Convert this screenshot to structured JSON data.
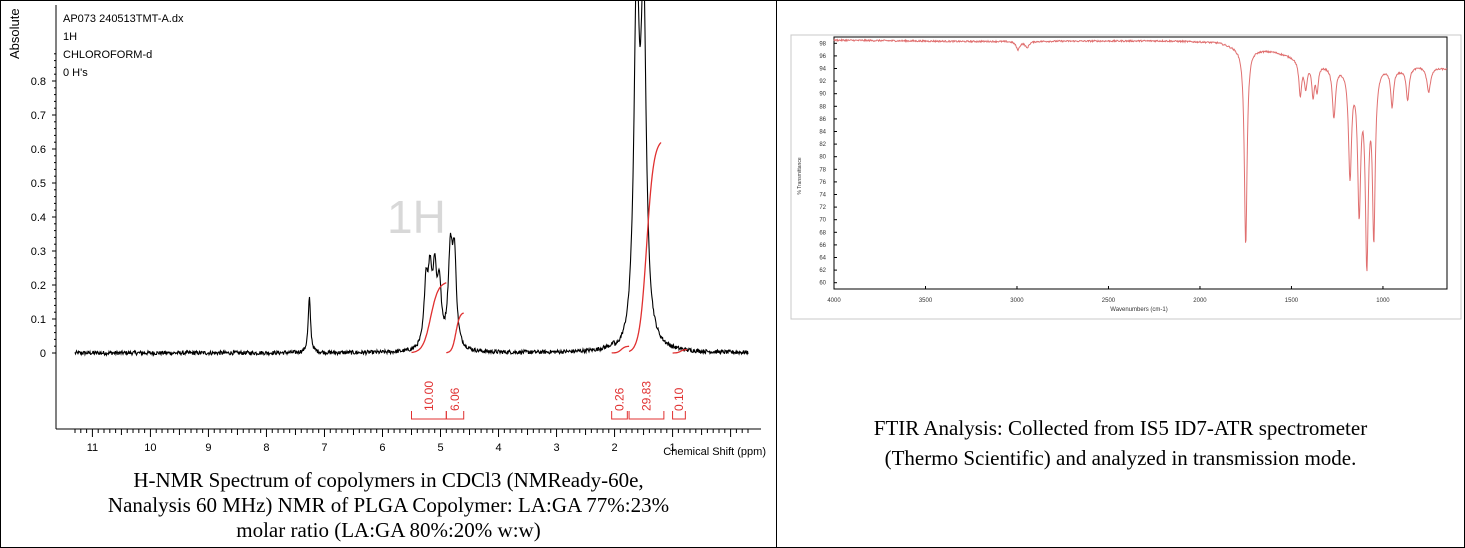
{
  "nmr": {
    "chart_data": {
      "type": "line",
      "header_lines": [
        "AP073 240513TMT-A.dx",
        "1H",
        "CHLOROFORM-d",
        "0 H's"
      ],
      "ylabel": "Absolute",
      "xlabel": "Chemical Shift (ppm)",
      "watermark": "1H",
      "xlim": [
        11.3,
        -0.3
      ],
      "ylim": [
        -0.04,
        0.98
      ],
      "y_ticks": [
        "0",
        "0.1",
        "0.2",
        "0.3",
        "0.4",
        "0.5",
        "0.6",
        "0.7",
        "0.8"
      ],
      "x_ticks": [
        "11",
        "10",
        "9",
        "8",
        "7",
        "6",
        "5",
        "4",
        "3",
        "2",
        "1"
      ],
      "peaks": [
        {
          "x": 7.26,
          "y": 0.16,
          "w": 0.025
        },
        {
          "x": 5.25,
          "y": 0.18,
          "w": 0.04
        },
        {
          "x": 5.18,
          "y": 0.19,
          "w": 0.04
        },
        {
          "x": 5.1,
          "y": 0.2,
          "w": 0.04
        },
        {
          "x": 5.02,
          "y": 0.17,
          "w": 0.04
        },
        {
          "x": 4.83,
          "y": 0.27,
          "w": 0.045
        },
        {
          "x": 4.76,
          "y": 0.25,
          "w": 0.04
        },
        {
          "x": 1.62,
          "y": 1.0,
          "w": 0.055
        },
        {
          "x": 1.5,
          "y": 0.98,
          "w": 0.055
        }
      ],
      "integral_curves": [
        {
          "from": 5.5,
          "to": 4.9,
          "end_y": 0.21
        },
        {
          "from": 4.9,
          "to": 4.6,
          "end_y": 0.12
        },
        {
          "from": 2.05,
          "to": 1.75,
          "end_y": 0.02
        },
        {
          "from": 1.75,
          "to": 1.2,
          "end_y": 0.63
        },
        {
          "from": 1.0,
          "to": 0.75,
          "end_y": 0.01
        }
      ],
      "integrals": [
        {
          "label": "10.00",
          "from": 5.5,
          "to": 4.9
        },
        {
          "label": "6.06",
          "from": 4.9,
          "to": 4.6
        },
        {
          "label": "0.26",
          "from": 2.05,
          "to": 1.78
        },
        {
          "label": "29.83",
          "from": 1.75,
          "to": 1.15
        },
        {
          "label": "0.10",
          "from": 1.0,
          "to": 0.78
        }
      ]
    },
    "caption_lines": [
      "H-NMR Spectrum of copolymers in CDCl3 (NMReady-60e,",
      "Nanalysis 60 MHz) NMR of PLGA Copolymer: LA:GA 77%:23%",
      "molar ratio (LA:GA 80%:20% w:w)"
    ]
  },
  "ftir": {
    "chart_data": {
      "type": "line",
      "xlabel": "Wavenumbers (cm-1)",
      "ylabel": "% Transmittance",
      "xlim": [
        4000,
        650
      ],
      "ylim": [
        59,
        99
      ],
      "x_ticks": [
        "4000",
        "3500",
        "3000",
        "2500",
        "2000",
        "1500",
        "1000"
      ],
      "y_ticks": [
        "98",
        "96",
        "94",
        "92",
        "90",
        "88",
        "86",
        "84",
        "82",
        "80",
        "78",
        "76",
        "74",
        "72",
        "70",
        "68",
        "66",
        "64",
        "62",
        "60"
      ],
      "bands": [
        {
          "x": 2995,
          "depth": 1.3,
          "w": 12
        },
        {
          "x": 2945,
          "depth": 1.0,
          "w": 12
        },
        {
          "x": 1750,
          "depth": 31.5,
          "w": 9
        },
        {
          "x": 1452,
          "depth": 5.5,
          "w": 9
        },
        {
          "x": 1422,
          "depth": 4.0,
          "w": 9
        },
        {
          "x": 1382,
          "depth": 5.0,
          "w": 8
        },
        {
          "x": 1360,
          "depth": 4.0,
          "w": 8
        },
        {
          "x": 1268,
          "depth": 8.0,
          "w": 10
        },
        {
          "x": 1180,
          "depth": 17.0,
          "w": 10
        },
        {
          "x": 1130,
          "depth": 22.0,
          "w": 10
        },
        {
          "x": 1088,
          "depth": 30.0,
          "w": 10
        },
        {
          "x": 1050,
          "depth": 26.0,
          "w": 9
        },
        {
          "x": 950,
          "depth": 6.0,
          "w": 9
        },
        {
          "x": 865,
          "depth": 5.0,
          "w": 9
        },
        {
          "x": 750,
          "depth": 4.0,
          "w": 12
        }
      ],
      "baseline": [
        {
          "x": 4000,
          "y": 98.5
        },
        {
          "x": 3300,
          "y": 98.3
        },
        {
          "x": 2200,
          "y": 98.4
        },
        {
          "x": 1900,
          "y": 98.2
        },
        {
          "x": 1800,
          "y": 97.5
        },
        {
          "x": 1600,
          "y": 96.8
        },
        {
          "x": 1500,
          "y": 96.0
        },
        {
          "x": 1400,
          "y": 95.0
        },
        {
          "x": 1250,
          "y": 94.5
        },
        {
          "x": 1000,
          "y": 94.5
        },
        {
          "x": 900,
          "y": 94.0
        },
        {
          "x": 800,
          "y": 94.5
        },
        {
          "x": 650,
          "y": 94.0
        }
      ]
    },
    "caption_lines": [
      "FTIR Analysis: Collected from IS5 ID7-ATR spectrometer",
      "(Thermo Scientific) and analyzed in transmission mode."
    ]
  },
  "colors": {
    "spectrum": "#000000",
    "integral": "#e03030",
    "ftir_line": "#e07070",
    "watermark": "#d8d8d8"
  }
}
